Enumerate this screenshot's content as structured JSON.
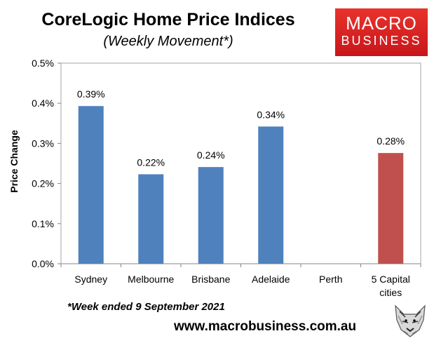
{
  "header": {
    "title": "CoreLogic Home Price Indices",
    "subtitle": "(Weekly Movement*)"
  },
  "logo": {
    "line1": "MACRO",
    "line2": "BUSINESS"
  },
  "footnote": "*Week ended 9 September 2021",
  "website": "www.macrobusiness.com.au",
  "colors": {
    "bar": "#4f81bd",
    "highlight_bar": "#c0504d",
    "plot_border": "#a6a6a6",
    "gridline": "#d9d9d9",
    "logo_red": "#d7231f"
  },
  "chart_data": {
    "type": "bar",
    "title": "CoreLogic Home Price Indices",
    "subtitle": "(Weekly Movement*)",
    "xlabel": "",
    "ylabel": "Price Change",
    "ylim": [
      0,
      0.5
    ],
    "y_ticks": [
      0,
      0.1,
      0.2,
      0.3,
      0.4,
      0.5
    ],
    "y_tick_labels": [
      "0.0%",
      "0.1%",
      "0.2%",
      "0.3%",
      "0.4%",
      "0.5%"
    ],
    "categories": [
      "Sydney",
      "Melbourne",
      "Brisbane",
      "Adelaide",
      "Perth",
      "5 Capital cities"
    ],
    "category_lines": [
      [
        "Sydney"
      ],
      [
        "Melbourne"
      ],
      [
        "Brisbane"
      ],
      [
        "Adelaide"
      ],
      [
        "Perth"
      ],
      [
        "5 Capital",
        "cities"
      ]
    ],
    "values": [
      0.393,
      0.223,
      0.241,
      0.342,
      null,
      0.276
    ],
    "data_labels": [
      "0.39%",
      "0.22%",
      "0.24%",
      "0.34%",
      "",
      "0.28%"
    ],
    "highlight_category": "5 Capital cities",
    "grid": false,
    "legend": "none"
  }
}
